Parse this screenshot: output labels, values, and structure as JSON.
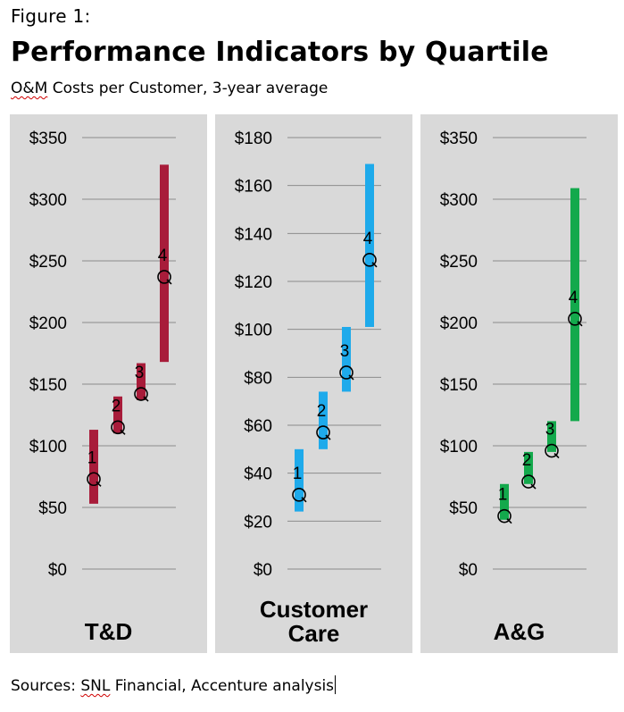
{
  "header": {
    "figure_label": "Figure 1:",
    "title": "Performance Indicators by Quartile",
    "subtitle_prefix": "O&M",
    "subtitle_rest": " Costs per Customer, 3-year average"
  },
  "footer": {
    "sources_prefix": "Sources: ",
    "sources_snl": "SNL",
    "sources_rest": " Financial, Accenture analysis"
  },
  "chart_data": [
    {
      "type": "range",
      "title": "T&D",
      "title_lines": [
        "T&D"
      ],
      "color": "#a81c3a",
      "ylim": [
        0,
        350
      ],
      "ticks": [
        0,
        50,
        100,
        150,
        200,
        250,
        300,
        350
      ],
      "tick_labels": [
        "$0",
        "$50",
        "$100",
        "$150",
        "$200",
        "$250",
        "$300",
        "$350"
      ],
      "series": [
        {
          "name": "1",
          "low": 53,
          "high": 113,
          "median": 73
        },
        {
          "name": "2",
          "low": 110,
          "high": 140,
          "median": 115
        },
        {
          "name": "3",
          "low": 137,
          "high": 167,
          "median": 142
        },
        {
          "name": "4",
          "low": 168,
          "high": 328,
          "median": 237
        }
      ],
      "marker_label": "Q"
    },
    {
      "type": "range",
      "title": "Customer Care",
      "title_lines": [
        "Customer",
        "Care"
      ],
      "color": "#1eaaeb",
      "ylim": [
        0,
        180
      ],
      "ticks": [
        0,
        20,
        40,
        60,
        80,
        100,
        120,
        140,
        160,
        180
      ],
      "tick_labels": [
        "$0",
        "$20",
        "$40",
        "$60",
        "$80",
        "$100",
        "$120",
        "$140",
        "$160",
        "$180"
      ],
      "series": [
        {
          "name": "1",
          "low": 24,
          "high": 50,
          "median": 31
        },
        {
          "name": "2",
          "low": 50,
          "high": 74,
          "median": 57
        },
        {
          "name": "3",
          "low": 74,
          "high": 101,
          "median": 82
        },
        {
          "name": "4",
          "low": 101,
          "high": 169,
          "median": 129
        }
      ],
      "marker_label": "Q"
    },
    {
      "type": "range",
      "title": "A&G",
      "title_lines": [
        "A&G"
      ],
      "color": "#13a94c",
      "ylim": [
        0,
        350
      ],
      "ticks": [
        0,
        50,
        100,
        150,
        200,
        250,
        300,
        350
      ],
      "tick_labels": [
        "$0",
        "$50",
        "$100",
        "$150",
        "$200",
        "$250",
        "$300",
        "$350"
      ],
      "series": [
        {
          "name": "1",
          "low": 40,
          "high": 69,
          "median": 43
        },
        {
          "name": "2",
          "low": 69,
          "high": 95,
          "median": 71
        },
        {
          "name": "3",
          "low": 95,
          "high": 120,
          "median": 96
        },
        {
          "name": "4",
          "low": 120,
          "high": 309,
          "median": 203
        }
      ],
      "marker_label": "Q"
    }
  ]
}
